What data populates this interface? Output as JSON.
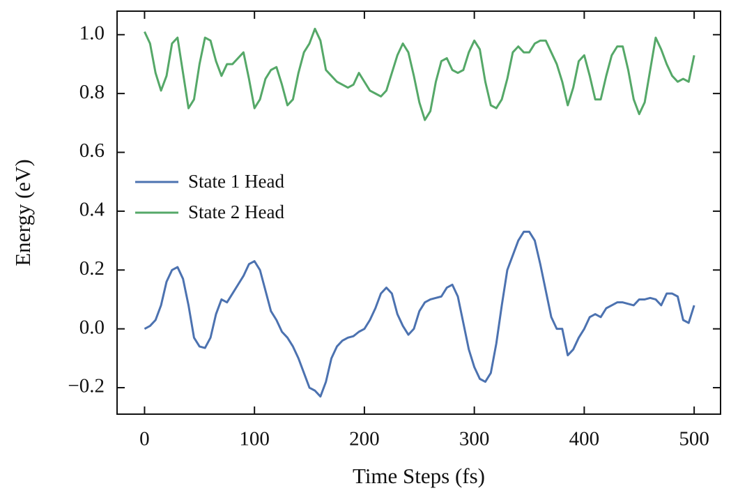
{
  "chart_data": {
    "type": "line",
    "xlabel": "Time Steps (fs)",
    "ylabel": "Energy (eV)",
    "x": [
      0,
      5,
      10,
      15,
      20,
      25,
      30,
      35,
      40,
      45,
      50,
      55,
      60,
      65,
      70,
      75,
      80,
      85,
      90,
      95,
      100,
      105,
      110,
      115,
      120,
      125,
      130,
      135,
      140,
      145,
      150,
      155,
      160,
      165,
      170,
      175,
      180,
      185,
      190,
      195,
      200,
      205,
      210,
      215,
      220,
      225,
      230,
      235,
      240,
      245,
      250,
      255,
      260,
      265,
      270,
      275,
      280,
      285,
      290,
      295,
      300,
      305,
      310,
      315,
      320,
      325,
      330,
      335,
      340,
      345,
      350,
      355,
      360,
      365,
      370,
      375,
      380,
      385,
      390,
      395,
      400,
      405,
      410,
      415,
      420,
      425,
      430,
      435,
      440,
      445,
      450,
      455,
      460,
      465,
      470,
      475,
      480,
      485,
      490,
      495,
      500
    ],
    "series": [
      {
        "name": "State 1 Head",
        "color": "#4c72b0",
        "values": [
          0.0,
          0.01,
          0.03,
          0.08,
          0.16,
          0.2,
          0.21,
          0.17,
          0.08,
          -0.03,
          -0.06,
          -0.065,
          -0.03,
          0.05,
          0.1,
          0.09,
          0.12,
          0.15,
          0.18,
          0.22,
          0.23,
          0.2,
          0.13,
          0.06,
          0.03,
          -0.01,
          -0.03,
          -0.06,
          -0.1,
          -0.15,
          -0.2,
          -0.21,
          -0.23,
          -0.18,
          -0.1,
          -0.06,
          -0.04,
          -0.03,
          -0.025,
          -0.01,
          0.0,
          0.03,
          0.07,
          0.12,
          0.14,
          0.12,
          0.05,
          0.01,
          -0.02,
          0.0,
          0.06,
          0.09,
          0.1,
          0.105,
          0.11,
          0.14,
          0.15,
          0.11,
          0.02,
          -0.07,
          -0.13,
          -0.17,
          -0.18,
          -0.15,
          -0.05,
          0.08,
          0.2,
          0.25,
          0.3,
          0.33,
          0.33,
          0.3,
          0.22,
          0.13,
          0.04,
          0.0,
          0.0,
          -0.09,
          -0.07,
          -0.03,
          0.0,
          0.04,
          0.05,
          0.04,
          0.07,
          0.08,
          0.09,
          0.09,
          0.085,
          0.08,
          0.1,
          0.1,
          0.105,
          0.1,
          0.08,
          0.12,
          0.12,
          0.11,
          0.03,
          0.02,
          0.08
        ]
      },
      {
        "name": "State 2 Head",
        "color": "#55a868",
        "values": [
          1.01,
          0.97,
          0.87,
          0.81,
          0.86,
          0.97,
          0.99,
          0.87,
          0.75,
          0.78,
          0.9,
          0.99,
          0.98,
          0.91,
          0.86,
          0.9,
          0.9,
          0.92,
          0.94,
          0.85,
          0.75,
          0.78,
          0.85,
          0.88,
          0.89,
          0.83,
          0.76,
          0.78,
          0.87,
          0.94,
          0.97,
          1.02,
          0.98,
          0.88,
          0.86,
          0.84,
          0.83,
          0.82,
          0.83,
          0.87,
          0.84,
          0.81,
          0.8,
          0.79,
          0.81,
          0.87,
          0.93,
          0.97,
          0.94,
          0.86,
          0.77,
          0.71,
          0.74,
          0.84,
          0.91,
          0.92,
          0.88,
          0.87,
          0.88,
          0.94,
          0.98,
          0.95,
          0.84,
          0.76,
          0.75,
          0.78,
          0.85,
          0.94,
          0.96,
          0.94,
          0.94,
          0.97,
          0.98,
          0.98,
          0.94,
          0.9,
          0.84,
          0.76,
          0.82,
          0.91,
          0.93,
          0.86,
          0.78,
          0.78,
          0.86,
          0.93,
          0.96,
          0.96,
          0.88,
          0.78,
          0.73,
          0.77,
          0.88,
          0.99,
          0.95,
          0.9,
          0.86,
          0.84,
          0.85,
          0.84,
          0.93
        ]
      }
    ],
    "xlim": [
      -25,
      524
    ],
    "ylim": [
      -0.29,
      1.08
    ],
    "xticks": [
      0,
      100,
      200,
      300,
      400,
      500
    ],
    "yticks": [
      {
        "value": -0.2,
        "label": "−0.2"
      },
      {
        "value": 0,
        "label": "0.0"
      },
      0.2,
      0.4,
      0.6,
      0.8,
      {
        "value": 1,
        "label": "1.0"
      }
    ],
    "legend": "center left",
    "grid": false
  }
}
